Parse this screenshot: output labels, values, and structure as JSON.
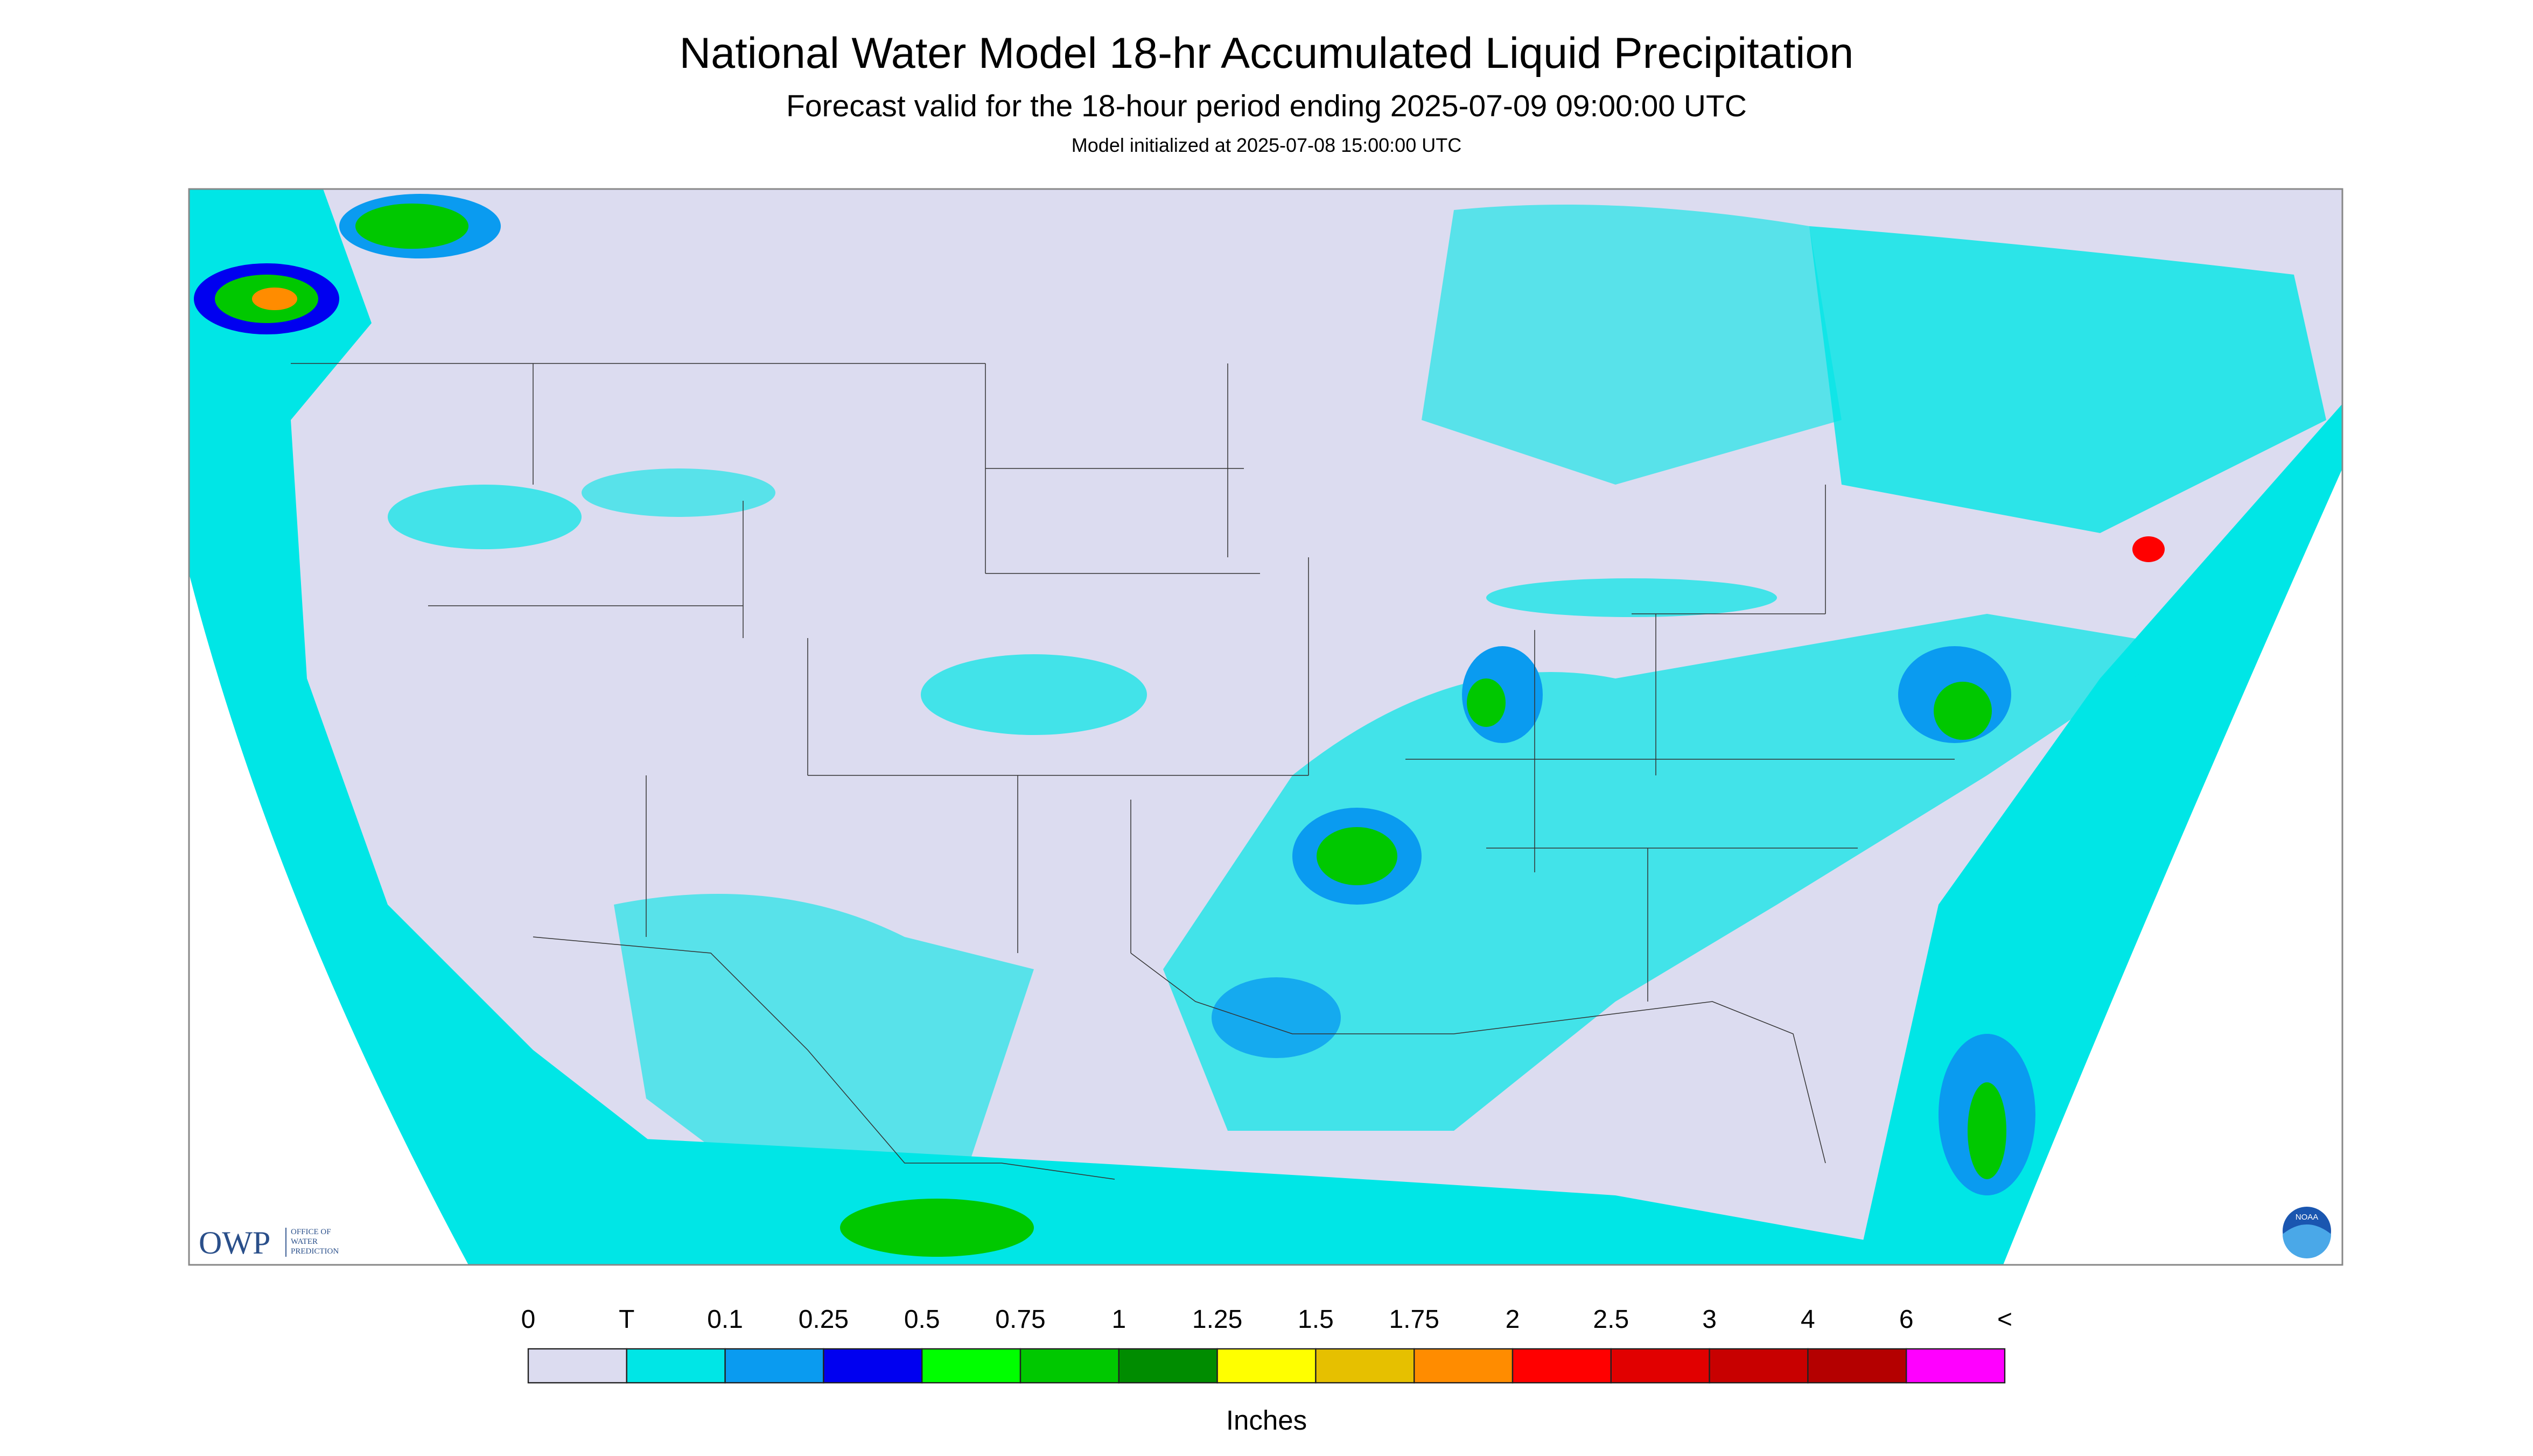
{
  "header": {
    "title": "National Water Model 18-hr Accumulated Liquid Precipitation",
    "subtitle": "Forecast valid for the 18-hour period ending 2025-07-09 09:00:00 UTC",
    "note": "Model initialized at 2025-07-08 15:00:00 UTC"
  },
  "legend": {
    "labels": [
      "0",
      "T",
      "0.1",
      "0.25",
      "0.5",
      "0.75",
      "1",
      "1.25",
      "1.5",
      "1.75",
      "2",
      "2.5",
      "3",
      "4",
      "6",
      "<"
    ],
    "colors": [
      "#dcdcf0",
      "#00e6e6",
      "#0a9bf0",
      "#0000f0",
      "#00ff00",
      "#00c800",
      "#008c00",
      "#ffff00",
      "#e6c000",
      "#ff8c00",
      "#ff0000",
      "#e10000",
      "#c80000",
      "#b40000",
      "#ff00ff",
      "#9650c8"
    ],
    "unit": "Inches"
  },
  "logo": {
    "owp": "OWP",
    "office": [
      "OFFICE OF",
      "WATER",
      "PREDICTION"
    ],
    "noaa": "NOAA"
  }
}
